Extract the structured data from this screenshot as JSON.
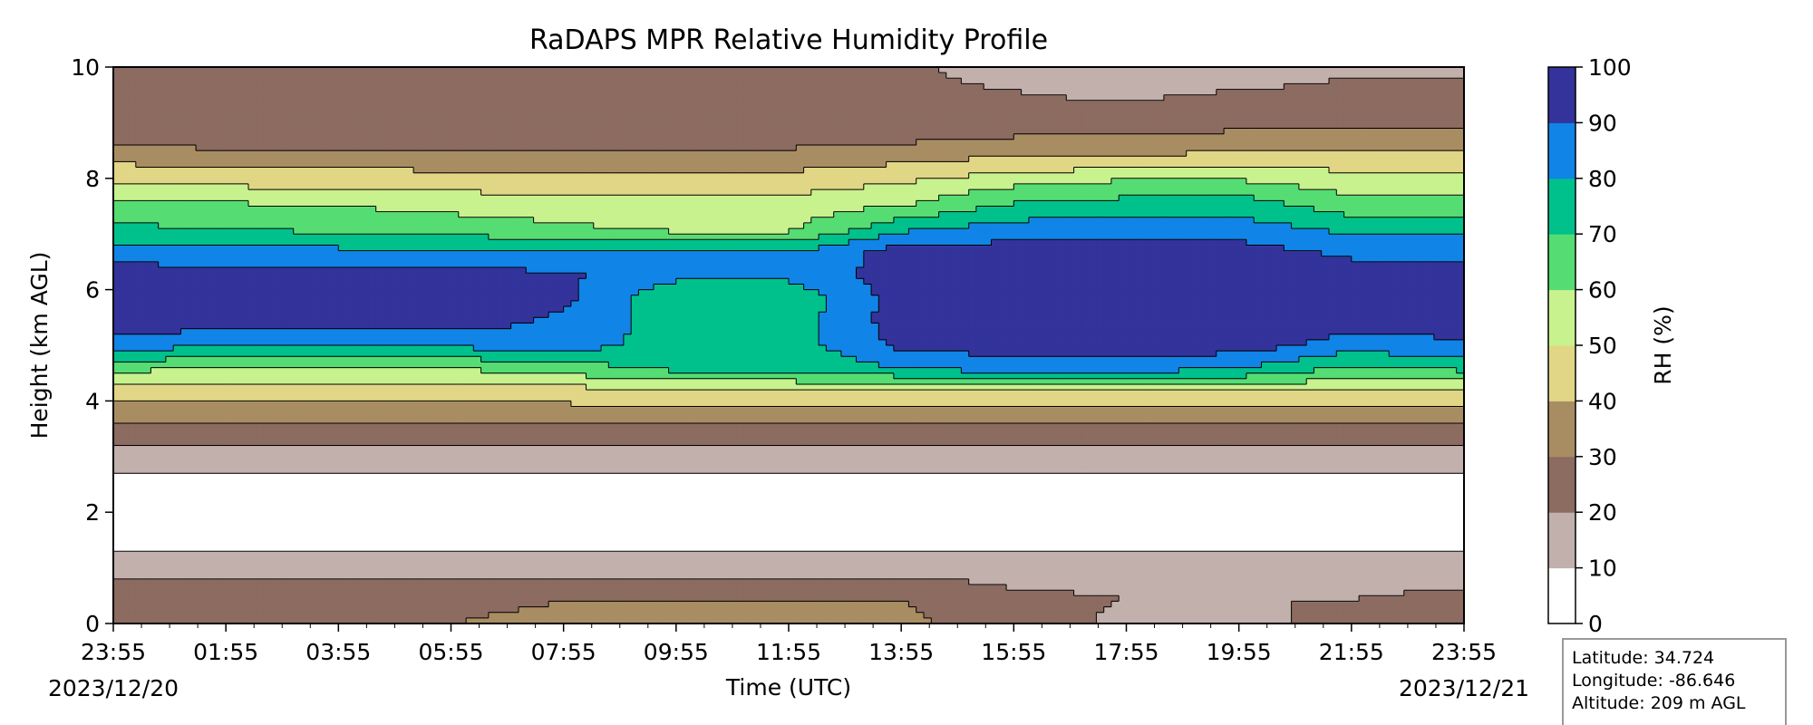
{
  "chart_data": {
    "type": "heatmap",
    "title": "RaDAPS MPR Relative Humidity Profile",
    "xlabel": "Time (UTC)",
    "ylabel": "Height (km AGL)",
    "xlim_hours": [
      0,
      24
    ],
    "ylim": [
      0,
      10
    ],
    "x_tick_labels": [
      "23:55",
      "01:55",
      "03:55",
      "05:55",
      "07:55",
      "09:55",
      "11:55",
      "13:55",
      "15:55",
      "17:55",
      "19:55",
      "21:55",
      "23:55"
    ],
    "y_ticks": [
      0,
      2,
      4,
      6,
      8,
      10
    ],
    "start_date": "2023/12/20",
    "end_date": "2023/12/21",
    "colorbar": {
      "label": "RH (%)",
      "levels": [
        0,
        10,
        20,
        30,
        40,
        50,
        60,
        70,
        80,
        90,
        100
      ],
      "colors": [
        "#ffffff",
        "#c2b0ac",
        "#8c6b60",
        "#a98d62",
        "#e1d685",
        "#c8f28e",
        "#55dd73",
        "#00c18c",
        "#1184e7",
        "#33339b"
      ]
    },
    "grid": false,
    "rh_profiles": [
      {
        "time": 0,
        "rh": [
          30,
          28,
          20,
          12,
          3,
          3,
          3,
          15,
          22,
          35,
          45,
          62,
          86,
          95,
          95,
          95,
          85,
          72,
          65,
          50,
          38,
          24,
          22,
          22,
          22
        ]
      },
      {
        "time": 2,
        "rh": [
          30,
          28,
          20,
          12,
          3,
          3,
          3,
          15,
          22,
          35,
          45,
          60,
          80,
          95,
          95,
          95,
          84,
          70,
          62,
          48,
          36,
          24,
          22,
          22,
          22
        ]
      },
      {
        "time": 4,
        "rh": [
          30,
          28,
          20,
          12,
          3,
          3,
          3,
          15,
          22,
          35,
          45,
          58,
          78,
          95,
          95,
          95,
          83,
          68,
          60,
          47,
          35,
          25,
          22,
          22,
          22
        ]
      },
      {
        "time": 6,
        "rh": [
          30,
          28,
          20,
          12,
          3,
          3,
          3,
          15,
          22,
          35,
          45,
          60,
          82,
          95,
          95,
          95,
          82,
          66,
          57,
          46,
          35,
          25,
          22,
          22,
          22
        ]
      },
      {
        "time": 8,
        "rh": [
          32,
          30,
          20,
          12,
          3,
          3,
          3,
          15,
          22,
          35,
          45,
          65,
          85,
          88,
          92,
          92,
          80,
          62,
          55,
          45,
          35,
          25,
          22,
          22,
          22
        ]
      },
      {
        "time": 10,
        "rh": [
          34,
          30,
          20,
          12,
          3,
          3,
          3,
          15,
          22,
          35,
          50,
          72,
          75,
          75,
          72,
          82,
          80,
          58,
          55,
          45,
          35,
          25,
          22,
          22,
          22
        ]
      },
      {
        "time": 12,
        "rh": [
          34,
          30,
          20,
          12,
          3,
          3,
          3,
          15,
          22,
          35,
          50,
          72,
          75,
          75,
          72,
          82,
          80,
          58,
          55,
          45,
          35,
          25,
          22,
          22,
          22
        ]
      },
      {
        "time": 14,
        "rh": [
          32,
          30,
          20,
          12,
          3,
          3,
          3,
          15,
          22,
          35,
          50,
          80,
          92,
          95,
          95,
          95,
          95,
          78,
          60,
          50,
          38,
          27,
          22,
          22,
          22
        ]
      },
      {
        "time": 16,
        "rh": [
          25,
          22,
          18,
          12,
          3,
          3,
          3,
          15,
          22,
          35,
          50,
          85,
          95,
          95,
          95,
          95,
          95,
          85,
          72,
          58,
          42,
          30,
          22,
          20,
          15
        ]
      },
      {
        "time": 18,
        "rh": [
          18,
          20,
          18,
          12,
          3,
          3,
          3,
          15,
          22,
          35,
          50,
          85,
          95,
          95,
          95,
          95,
          95,
          85,
          75,
          62,
          42,
          30,
          22,
          18,
          14
        ]
      },
      {
        "time": 20,
        "rh": [
          18,
          20,
          18,
          12,
          3,
          3,
          3,
          15,
          22,
          35,
          50,
          80,
          95,
          95,
          95,
          95,
          95,
          85,
          76,
          62,
          45,
          32,
          25,
          20,
          15
        ]
      },
      {
        "time": 22,
        "rh": [
          22,
          20,
          18,
          12,
          3,
          3,
          3,
          15,
          22,
          35,
          50,
          68,
          85,
          95,
          95,
          95,
          88,
          78,
          65,
          55,
          45,
          32,
          25,
          22,
          18
        ]
      },
      {
        "time": 24,
        "rh": [
          25,
          22,
          18,
          12,
          3,
          3,
          3,
          15,
          22,
          35,
          50,
          72,
          88,
          95,
          95,
          95,
          85,
          78,
          65,
          55,
          45,
          32,
          25,
          22,
          18
        ]
      }
    ]
  },
  "station": {
    "latitude": "Latitude: 34.724",
    "longitude": "Longitude: -86.646",
    "altitude": "Altitude: 209 m AGL"
  }
}
